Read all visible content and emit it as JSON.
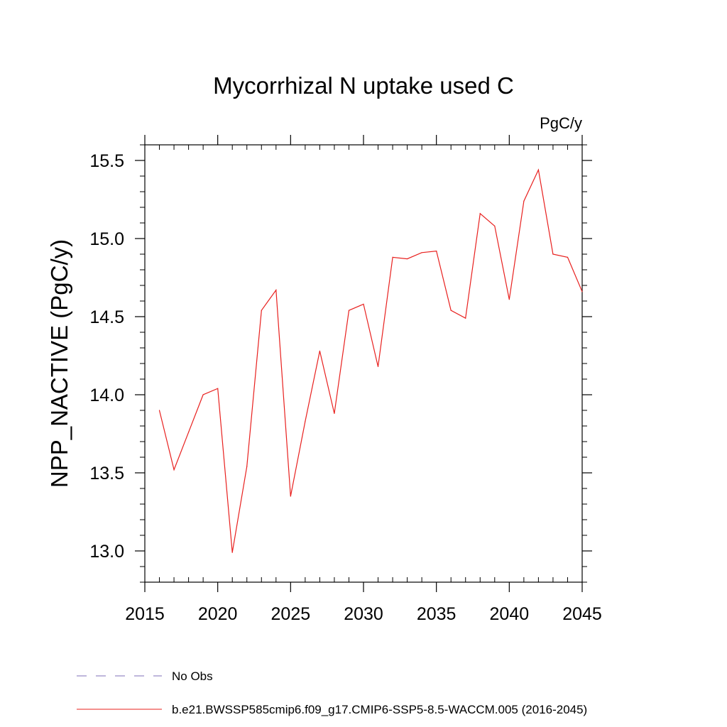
{
  "chart_data": {
    "type": "line",
    "title": "Mycorrhizal N uptake used C",
    "units": "PgC/y",
    "ylabel": "NPP_NACTIVE  (PgC/y)",
    "xlabel": "",
    "xlim": [
      2015,
      2045
    ],
    "ylim": [
      12.8,
      15.6
    ],
    "x_ticks": [
      "2015",
      "2020",
      "2025",
      "2030",
      "2035",
      "2040",
      "2045"
    ],
    "y_ticks": [
      "13.0",
      "13.5",
      "14.0",
      "14.5",
      "15.0",
      "15.5"
    ],
    "grid": false,
    "legend_position": "bottom",
    "legend": [
      {
        "label": "No Obs",
        "color": "#7f6fb8",
        "style": "dashed"
      },
      {
        "label": "b.e21.BWSSP585cmip6.f09_g17.CMIP6-SSP5-8.5-WACCM.005 (2016-2045)",
        "color": "#e8201e",
        "style": "solid"
      }
    ],
    "series": [
      {
        "name": "b.e21.BWSSP585cmip6.f09_g17.CMIP6-SSP5-8.5-WACCM.005 (2016-2045)",
        "color": "#e8201e",
        "x": [
          2016,
          2017,
          2018,
          2019,
          2020,
          2021,
          2022,
          2023,
          2024,
          2025,
          2026,
          2027,
          2028,
          2029,
          2030,
          2031,
          2032,
          2033,
          2034,
          2035,
          2036,
          2037,
          2038,
          2039,
          2040,
          2041,
          2042,
          2043,
          2044,
          2045
        ],
        "values": [
          13.9,
          13.52,
          13.76,
          14.0,
          14.04,
          12.99,
          13.54,
          14.54,
          14.67,
          13.35,
          13.83,
          14.28,
          13.88,
          14.54,
          14.58,
          14.18,
          14.88,
          14.87,
          14.91,
          14.92,
          14.54,
          14.49,
          15.16,
          15.08,
          14.61,
          15.24,
          15.44,
          14.9,
          14.88,
          14.66
        ]
      }
    ]
  }
}
